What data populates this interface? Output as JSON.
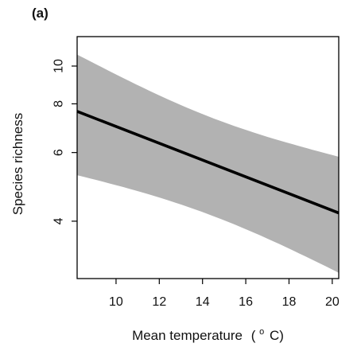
{
  "panel_label": "(a)",
  "chart_data": {
    "type": "line",
    "panel": "(a)",
    "xlabel_main": "Mean temperature",
    "xlabel_unit_open": "(",
    "xlabel_unit_sup": "o",
    "xlabel_unit_rest": "C)",
    "ylabel": "Species richness",
    "y_scale": "log",
    "xlim": [
      8.2,
      20.3
    ],
    "ylim": [
      2.85,
      11.9
    ],
    "x_ticks": [
      10,
      12,
      14,
      16,
      18,
      20
    ],
    "y_ticks": [
      4,
      6,
      8,
      10
    ],
    "grid": false,
    "legend": "none",
    "series": [
      {
        "x": [
          8.2,
          20.3
        ],
        "y": [
          7.65,
          4.2
        ],
        "ci_lower": [
          5.25,
          2.95
        ],
        "ci_upper": [
          10.7,
          5.85
        ]
      }
    ],
    "colors": {
      "line": "#000000",
      "band": "#b2b2b2",
      "frame": "#000000"
    }
  }
}
